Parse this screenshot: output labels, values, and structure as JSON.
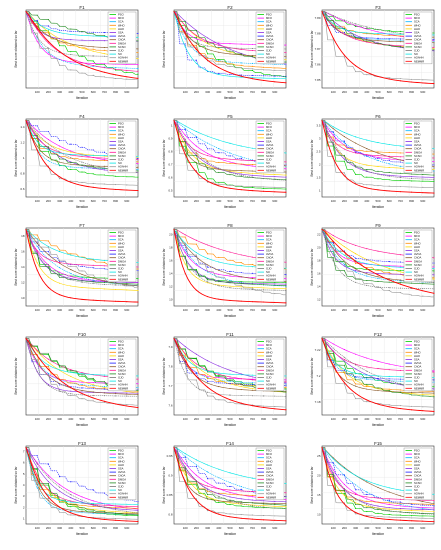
{
  "figure": {
    "axis_tick_labels": [
      "100",
      "200",
      "300",
      "400",
      "500",
      "600",
      "700",
      "800",
      "900"
    ],
    "xlabel": "Iteration",
    "ylabel": "Best score obtained so far",
    "legend_labels": [
      "PSO",
      "MFO",
      "SCA",
      "WHO",
      "HHO",
      "SSA",
      "AVOA",
      "ChOA",
      "DMOA",
      "SCSO",
      "GJO",
      "SO",
      "AOAHH",
      "NEMMR"
    ],
    "series_colors": [
      "#00cc00",
      "#ff00ff",
      "#00b3ff",
      "#ff8c00",
      "#ffd700",
      "#8a2be2",
      "#1a1aff",
      "#8b5a2b",
      "#ff1493",
      "#228b22",
      "#777777",
      "#00e5e5",
      "#999999",
      "#ff0000"
    ]
  },
  "chart_data": [
    {
      "type": "line",
      "title": "F1",
      "ylabel": "Best score obtained so far",
      "xlabel": "Iteration",
      "x_ticks": [
        "100",
        "200",
        "300",
        "400",
        "500",
        "600",
        "700",
        "800",
        "900"
      ],
      "yticks": [],
      "series_final": [
        0.05,
        0.3,
        0.25,
        0.45,
        0.35,
        0.6,
        0.7,
        0.5,
        0.2,
        0.55,
        0.4,
        0.65,
        0.1,
        0.08
      ]
    },
    {
      "type": "line",
      "title": "F2",
      "ylabel": "Best score obtained so far",
      "xlabel": "Iteration",
      "x_ticks": [
        "100",
        "200",
        "300",
        "400",
        "500",
        "600",
        "700",
        "800",
        "900"
      ],
      "yticks": [],
      "series_final": [
        0.1,
        0.55,
        0.3,
        0.25,
        0.35,
        0.2,
        0.15,
        0.4,
        0.45,
        0.3,
        0.5,
        0.12,
        0.22,
        0.05
      ]
    },
    {
      "type": "line",
      "title": "F3",
      "ylabel": "Best score obtained so far",
      "xlabel": "Iteration",
      "x_ticks": [
        "100",
        "200",
        "300",
        "400",
        "500",
        "600",
        "700",
        "800",
        "900"
      ],
      "yticks": [
        "7.85",
        "7.86",
        "7.87",
        "7.88",
        "7.89"
      ],
      "series_final": [
        0.7,
        0.55,
        0.6,
        0.65,
        0.5,
        0.45,
        0.62,
        0.58,
        0.52,
        0.48,
        0.6,
        0.68,
        0.1,
        0.05
      ]
    },
    {
      "type": "line",
      "title": "F4",
      "ylabel": "Best score obtained so far",
      "xlabel": "Iteration",
      "x_ticks": [
        "100",
        "200",
        "300",
        "400",
        "500",
        "600",
        "700",
        "800",
        "900"
      ],
      "yticks": [
        "0.6",
        "0.8",
        "1",
        "1.2",
        "1.4"
      ],
      "series_final": [
        0.25,
        0.4,
        0.35,
        0.45,
        0.5,
        0.3,
        0.42,
        0.38,
        0.48,
        0.33,
        0.28,
        0.52,
        0.15,
        0.08
      ]
    },
    {
      "type": "line",
      "title": "F5",
      "ylabel": "Best score obtained so far",
      "xlabel": "Iteration",
      "x_ticks": [
        "100",
        "200",
        "300",
        "400",
        "500",
        "600",
        "700",
        "800",
        "900"
      ],
      "yticks": [
        "0.5",
        "0.6",
        "0.7",
        "0.8",
        "0.9",
        "1"
      ],
      "series_final": [
        0.1,
        0.35,
        0.3,
        0.4,
        0.28,
        0.25,
        0.38,
        0.32,
        0.45,
        0.22,
        0.2,
        0.5,
        0.12,
        0.06
      ]
    },
    {
      "type": "line",
      "title": "F6",
      "ylabel": "Best score obtained so far",
      "xlabel": "Iteration",
      "x_ticks": [
        "100",
        "200",
        "300",
        "400",
        "500",
        "600",
        "700",
        "800",
        "900"
      ],
      "yticks": [
        "1",
        "1.5",
        "2",
        "2.5",
        "3",
        "3.5"
      ],
      "series_final": [
        0.2,
        0.45,
        0.3,
        0.55,
        0.35,
        0.25,
        0.4,
        0.3,
        0.5,
        0.28,
        0.22,
        0.6,
        0.12,
        0.05
      ]
    },
    {
      "type": "line",
      "title": "F7",
      "ylabel": "Best score obtained so far",
      "xlabel": "Iteration",
      "x_ticks": [
        "100",
        "200",
        "300",
        "400",
        "500",
        "600",
        "700",
        "800",
        "900"
      ],
      "yticks": [
        "10",
        "12",
        "14",
        "16",
        "18"
      ],
      "series_final": [
        0.35,
        0.3,
        0.25,
        0.4,
        0.2,
        0.3,
        0.45,
        0.22,
        0.5,
        0.28,
        0.26,
        0.55,
        0.12,
        0.05
      ]
    },
    {
      "type": "line",
      "title": "F8",
      "ylabel": "Best score obtained so far",
      "xlabel": "Iteration",
      "x_ticks": [
        "100",
        "200",
        "300",
        "400",
        "500",
        "600",
        "700",
        "800",
        "900"
      ],
      "yticks": [
        "10",
        "12",
        "14",
        "16",
        "18",
        "20"
      ],
      "series_final": [
        0.3,
        0.35,
        0.25,
        0.45,
        0.22,
        0.28,
        0.4,
        0.3,
        0.5,
        0.26,
        0.2,
        0.48,
        0.1,
        0.04
      ]
    },
    {
      "type": "line",
      "title": "F9",
      "ylabel": "Best score obtained so far",
      "xlabel": "Iteration",
      "x_ticks": [
        "100",
        "200",
        "300",
        "400",
        "500",
        "600",
        "700",
        "800",
        "900"
      ],
      "yticks": [
        "12",
        "14",
        "16",
        "18",
        "20",
        "22"
      ],
      "series_final": [
        0.45,
        0.5,
        0.3,
        0.35,
        0.25,
        0.4,
        0.55,
        0.3,
        0.6,
        0.28,
        0.22,
        0.48,
        0.1,
        0.04
      ]
    },
    {
      "type": "line",
      "title": "F10",
      "ylabel": "Best score obtained so far",
      "xlabel": "Iteration",
      "x_ticks": [
        "100",
        "200",
        "300",
        "400",
        "500",
        "600",
        "700",
        "800",
        "900"
      ],
      "yticks": [],
      "series_final": [
        0.2,
        0.4,
        0.35,
        0.3,
        0.25,
        0.28,
        0.32,
        0.26,
        0.45,
        0.22,
        0.24,
        0.5,
        0.12,
        0.05
      ]
    },
    {
      "type": "line",
      "title": "F11",
      "ylabel": "Best score obtained so far",
      "xlabel": "Iteration",
      "x_ticks": [
        "100",
        "200",
        "300",
        "400",
        "500",
        "600",
        "700",
        "800",
        "900"
      ],
      "yticks": [
        "7.6",
        "7.7",
        "7.8",
        "7.9"
      ],
      "series_final": [
        0.3,
        0.45,
        0.4,
        0.35,
        0.28,
        0.32,
        0.38,
        0.3,
        0.42,
        0.26,
        0.24,
        0.5,
        0.1,
        0.05
      ]
    },
    {
      "type": "line",
      "title": "F12",
      "ylabel": "Best score obtained so far",
      "xlabel": "Iteration",
      "x_ticks": [
        "100",
        "200",
        "300",
        "400",
        "500",
        "600",
        "700",
        "800",
        "900"
      ],
      "yticks": [
        "7.18",
        "7.2",
        "7.22"
      ],
      "series_final": [
        0.35,
        0.5,
        0.42,
        0.3,
        0.25,
        0.3,
        0.45,
        0.28,
        0.55,
        0.22,
        0.2,
        0.48,
        0.1,
        0.04
      ]
    },
    {
      "type": "line",
      "title": "F13",
      "ylabel": "Best score obtained so far",
      "xlabel": "Iteration",
      "x_ticks": [
        "100",
        "200",
        "300",
        "400",
        "500",
        "600",
        "700",
        "800",
        "900"
      ],
      "yticks": [
        "1",
        "2",
        "3",
        "4",
        "5",
        "6",
        "7"
      ],
      "series_final": [
        0.1,
        0.15,
        0.12,
        0.2,
        0.14,
        0.16,
        0.18,
        0.13,
        0.22,
        0.11,
        0.1,
        0.25,
        0.06,
        0.03
      ]
    },
    {
      "type": "line",
      "title": "F14",
      "ylabel": "Best score obtained so far",
      "xlabel": "Iteration",
      "x_ticks": [
        "100",
        "200",
        "300",
        "400",
        "500",
        "600",
        "700",
        "800",
        "900"
      ],
      "yticks": [
        "0.8",
        "0.85",
        "0.9",
        "0.95"
      ],
      "series_final": [
        0.2,
        0.3,
        0.25,
        0.35,
        0.22,
        0.28,
        0.32,
        0.26,
        0.4,
        0.24,
        0.18,
        0.45,
        0.1,
        0.04
      ]
    },
    {
      "type": "line",
      "title": "F15",
      "ylabel": "Best score obtained so far",
      "xlabel": "Iteration",
      "x_ticks": [
        "100",
        "200",
        "300",
        "400",
        "500",
        "600",
        "700",
        "800",
        "900"
      ],
      "yticks": [
        "10",
        "15",
        "20",
        "25"
      ],
      "series_final": [
        0.1,
        0.2,
        0.14,
        0.25,
        0.16,
        0.18,
        0.22,
        0.15,
        0.3,
        0.13,
        0.12,
        0.35,
        0.07,
        0.03
      ]
    }
  ]
}
